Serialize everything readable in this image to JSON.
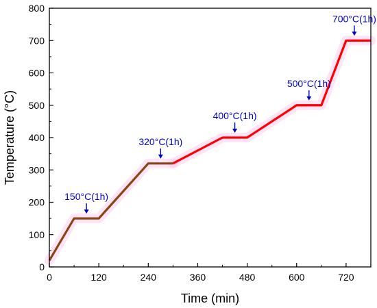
{
  "chart_data": {
    "type": "line",
    "xlabel": "Time (min)",
    "ylabel": "Temperature (°C)",
    "xlim": [
      0,
      780
    ],
    "ylim": [
      0,
      800
    ],
    "x_ticks": [
      0,
      120,
      240,
      360,
      480,
      600,
      720
    ],
    "y_ticks": [
      0,
      100,
      200,
      300,
      400,
      500,
      600,
      700,
      800
    ],
    "grid": false,
    "series": [
      {
        "color": "#8B4513",
        "x": [
          0,
          60,
          120,
          240,
          300
        ],
        "y": [
          20,
          150,
          150,
          320,
          320
        ]
      },
      {
        "color": "#FF0000",
        "x": [
          300,
          420,
          480,
          600,
          660,
          720,
          780
        ],
        "y": [
          320,
          400,
          400,
          500,
          500,
          700,
          700
        ]
      }
    ],
    "annotations": [
      {
        "text": "150°C(1h)",
        "x": 90,
        "y": 150
      },
      {
        "text": "320°C(1h)",
        "x": 270,
        "y": 320
      },
      {
        "text": "400°C(1h)",
        "x": 450,
        "y": 400
      },
      {
        "text": "500°C(1h)",
        "x": 630,
        "y": 500
      },
      {
        "text": "700°C(1h)",
        "x": 740,
        "y": 700
      }
    ],
    "annotation_color": "#0000CC",
    "shadow_color": "#FFCCEE"
  }
}
